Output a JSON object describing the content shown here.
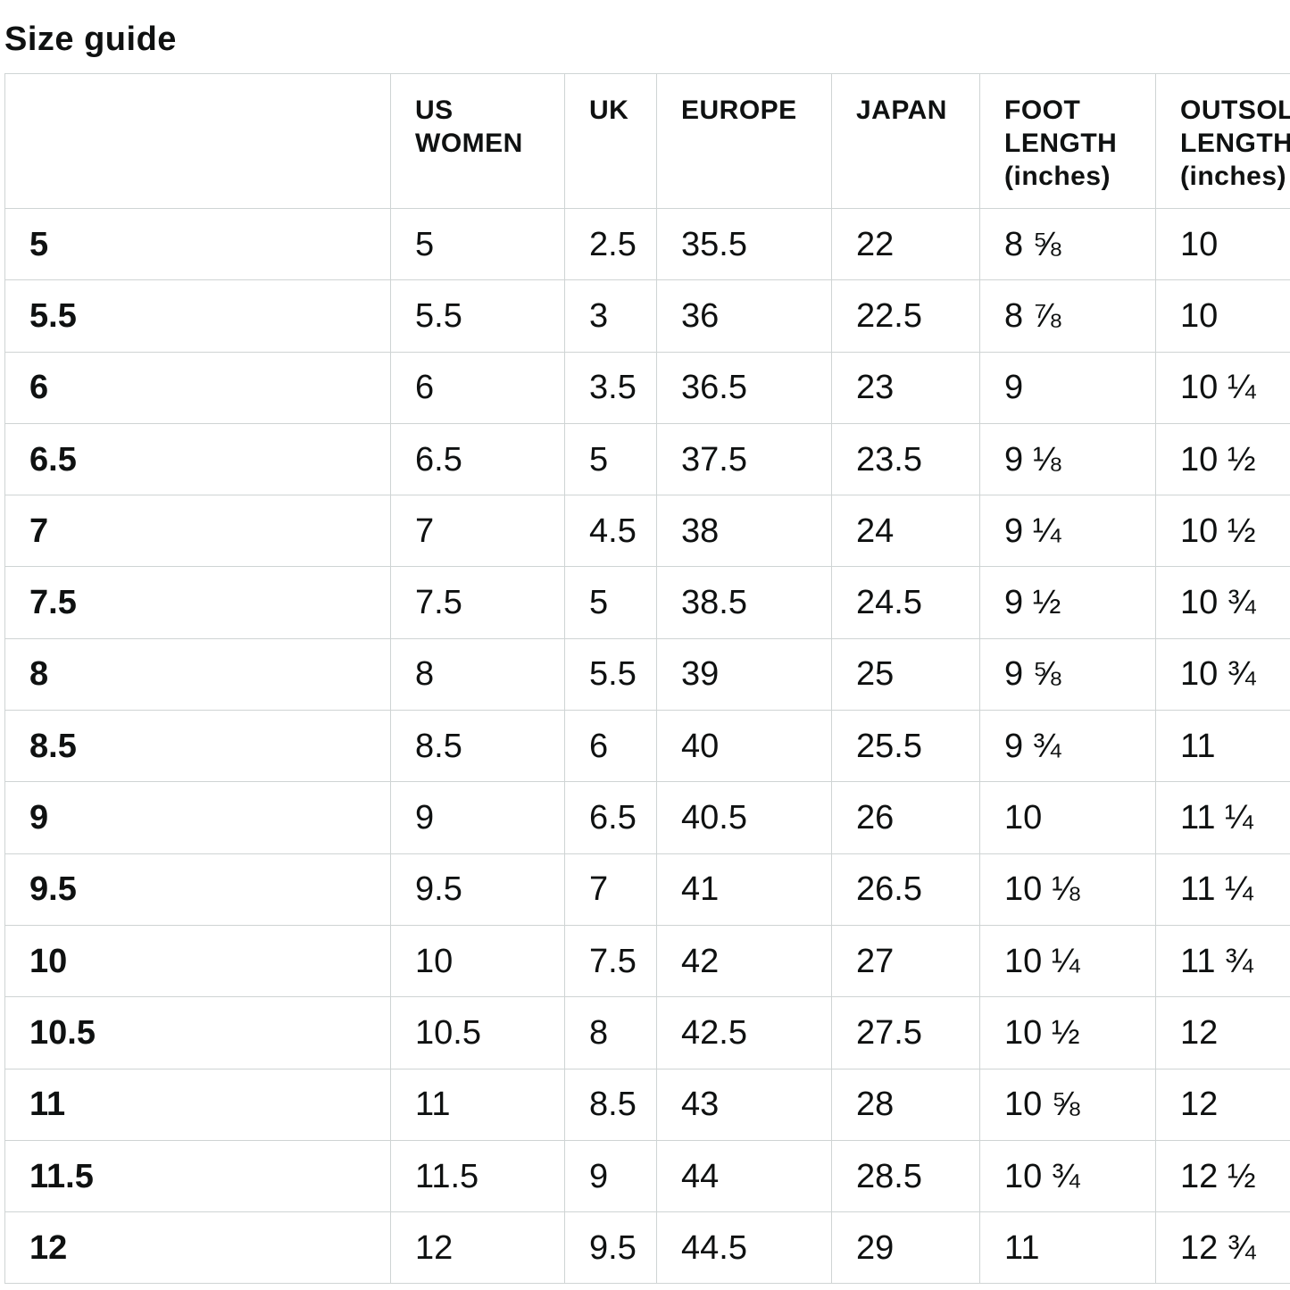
{
  "title": "Size guide",
  "table": {
    "columns": [
      {
        "key": "size",
        "label": ""
      },
      {
        "key": "us_women",
        "label": "US\nWOMEN"
      },
      {
        "key": "uk",
        "label": "UK"
      },
      {
        "key": "europe",
        "label": "EUROPE"
      },
      {
        "key": "japan",
        "label": "JAPAN"
      },
      {
        "key": "foot_length",
        "label": "FOOT\nLENGTH\n(inches)"
      },
      {
        "key": "outsole_length",
        "label": "OUTSOLE\nLENGTH\n(inches)"
      }
    ],
    "rows": [
      {
        "size": "5",
        "us_women": "5",
        "uk": "2.5",
        "europe": "35.5",
        "japan": "22",
        "foot_length": "8 ⅝",
        "outsole_length": "10"
      },
      {
        "size": "5.5",
        "us_women": "5.5",
        "uk": "3",
        "europe": "36",
        "japan": "22.5",
        "foot_length": "8 ⅞",
        "outsole_length": "10"
      },
      {
        "size": "6",
        "us_women": "6",
        "uk": "3.5",
        "europe": "36.5",
        "japan": "23",
        "foot_length": "9",
        "outsole_length": "10 ¼"
      },
      {
        "size": "6.5",
        "us_women": "6.5",
        "uk": "5",
        "europe": "37.5",
        "japan": "23.5",
        "foot_length": "9 ⅛",
        "outsole_length": "10 ½"
      },
      {
        "size": "7",
        "us_women": "7",
        "uk": "4.5",
        "europe": "38",
        "japan": "24",
        "foot_length": "9 ¼",
        "outsole_length": "10 ½"
      },
      {
        "size": "7.5",
        "us_women": "7.5",
        "uk": "5",
        "europe": "38.5",
        "japan": "24.5",
        "foot_length": "9 ½",
        "outsole_length": "10 ¾"
      },
      {
        "size": "8",
        "us_women": "8",
        "uk": "5.5",
        "europe": "39",
        "japan": "25",
        "foot_length": "9 ⅝",
        "outsole_length": "10 ¾"
      },
      {
        "size": "8.5",
        "us_women": "8.5",
        "uk": "6",
        "europe": "40",
        "japan": "25.5",
        "foot_length": "9 ¾",
        "outsole_length": "11"
      },
      {
        "size": "9",
        "us_women": "9",
        "uk": "6.5",
        "europe": "40.5",
        "japan": "26",
        "foot_length": "10",
        "outsole_length": "11 ¼"
      },
      {
        "size": "9.5",
        "us_women": "9.5",
        "uk": "7",
        "europe": "41",
        "japan": "26.5",
        "foot_length": "10 ⅛",
        "outsole_length": "11 ¼"
      },
      {
        "size": "10",
        "us_women": "10",
        "uk": "7.5",
        "europe": "42",
        "japan": "27",
        "foot_length": "10 ¼",
        "outsole_length": "11 ¾"
      },
      {
        "size": "10.5",
        "us_women": "10.5",
        "uk": "8",
        "europe": "42.5",
        "japan": "27.5",
        "foot_length": "10 ½",
        "outsole_length": "12"
      },
      {
        "size": "11",
        "us_women": "11",
        "uk": "8.5",
        "europe": "43",
        "japan": "28",
        "foot_length": "10 ⅝",
        "outsole_length": "12"
      },
      {
        "size": "11.5",
        "us_women": "11.5",
        "uk": "9",
        "europe": "44",
        "japan": "28.5",
        "foot_length": "10 ¾",
        "outsole_length": "12 ½"
      },
      {
        "size": "12",
        "us_women": "12",
        "uk": "9.5",
        "europe": "44.5",
        "japan": "29",
        "foot_length": "11",
        "outsole_length": "12 ¾"
      }
    ]
  }
}
